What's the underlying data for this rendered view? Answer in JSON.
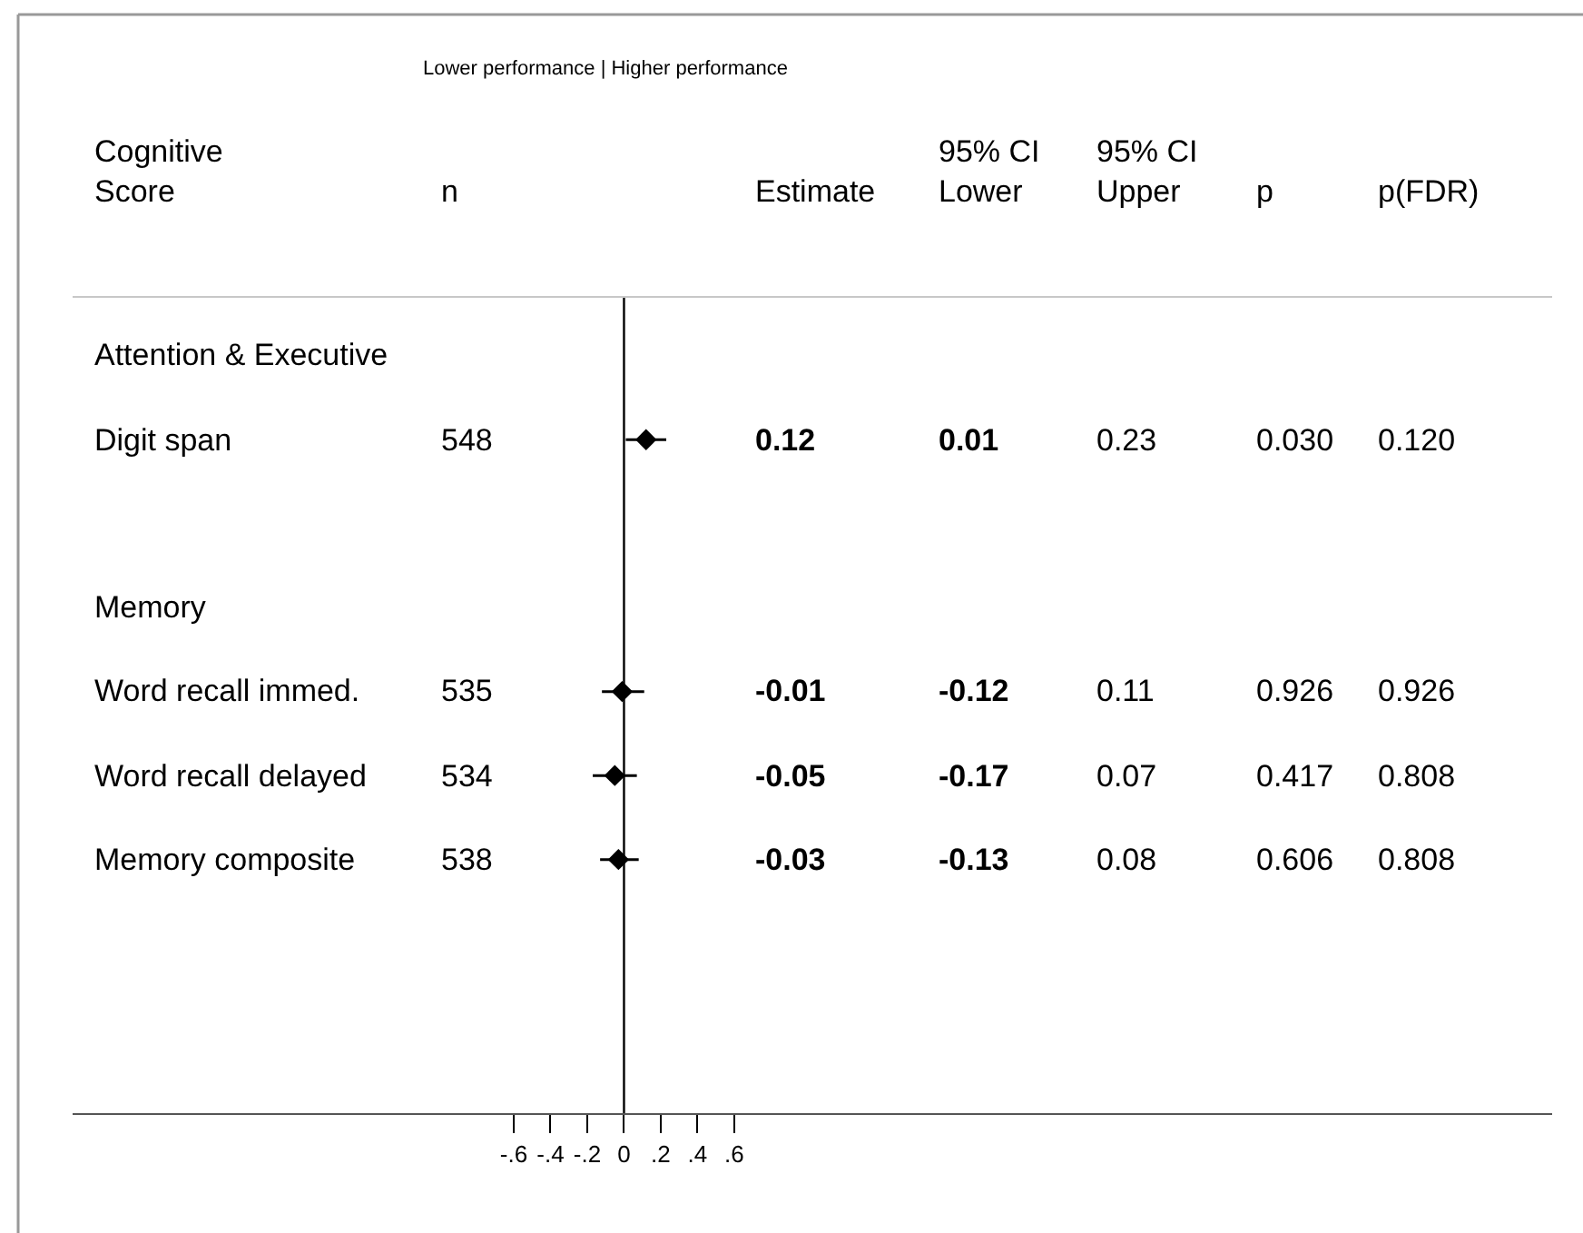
{
  "chart_data": {
    "type": "scatter",
    "orientation": "horizontal",
    "title": "Lower performance | Higher performance",
    "categories": [
      "Attention & Executive",
      "Digit span",
      null,
      "Memory",
      "Word recall immed.",
      "Word recall delayed",
      "Memory composite",
      null,
      null
    ],
    "values": [
      null,
      0.12,
      null,
      null,
      -0.01,
      -0.05,
      -0.03,
      null,
      null
    ],
    "errors": [
      null,
      [
        0.01,
        0.23
      ],
      null,
      null,
      [
        -0.12,
        0.11
      ],
      [
        -0.17,
        0.07
      ],
      [
        -0.13,
        0.08
      ],
      null,
      null
    ],
    "color": "#000000",
    "marker": "diamond",
    "grid": false,
    "legend": false,
    "xlim": [
      -3.0,
      5.05
    ],
    "xticks": [
      {
        "value": -0.6,
        "label": "-.6"
      },
      {
        "value": -0.4,
        "label": "-.4"
      },
      {
        "value": -0.2,
        "label": "-.2"
      },
      0,
      {
        "value": 0.2,
        "label": ".2"
      },
      {
        "value": 0.4,
        "label": ".4"
      },
      {
        "value": 0.6,
        "label": ".6"
      }
    ],
    "ref_lines": [
      {
        "axis": "x",
        "value": 0,
        "color": "#000000"
      }
    ],
    "annotations": [
      "Cognitive\nScore",
      "n",
      "Estimate",
      "95% CI\nLower",
      "95% CI\nUpper",
      "p",
      "p(FDR)",
      "548",
      "0.12",
      "0.01",
      "0.23",
      "0.030",
      "0.120",
      "535",
      "-0.01",
      "-0.12",
      "0.11",
      "0.926",
      "0.926",
      "534",
      "-0.05",
      "-0.17",
      "0.07",
      "0.417",
      "0.808",
      "538",
      "-0.03",
      "-0.13",
      "0.08",
      "0.606",
      "0.808"
    ]
  }
}
